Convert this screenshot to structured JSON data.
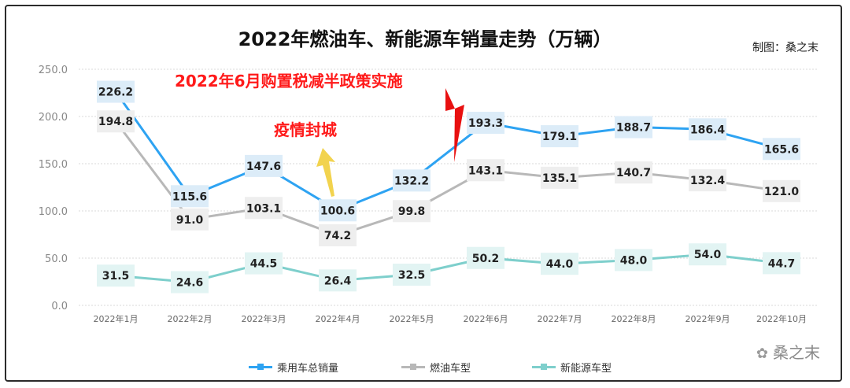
{
  "title": "2022年燃油车、新能源车销量走势（万辆）",
  "credit": "制图：桑之末",
  "watermark": "桑之末",
  "annotations": [
    {
      "text": "2022年6月购置税减半政策实施",
      "color": "#ff1a1a"
    },
    {
      "text": "疫情封城",
      "color": "#ff1a1a"
    }
  ],
  "colors": {
    "total": "#2ea3f2",
    "fuel": "#b8b8b8",
    "nev": "#7ecfcc",
    "arrow_red": "#e81010",
    "arrow_yellow": "#f2d34e"
  },
  "chart_data": {
    "type": "line",
    "title": "2022年燃油车、新能源车销量走势（万辆）",
    "categories": [
      "2022年1月",
      "2022年2月",
      "2022年3月",
      "2022年4月",
      "2022年5月",
      "2022年6月",
      "2022年7月",
      "2022年8月",
      "2022年9月",
      "2022年10月"
    ],
    "ylim": [
      0,
      250
    ],
    "yticks": [
      "0.0",
      "50.0",
      "100.0",
      "150.0",
      "200.0",
      "250.0"
    ],
    "grid": true,
    "legend_position": "bottom",
    "series": [
      {
        "name": "乘用车总销量",
        "values": [
          226.2,
          115.6,
          147.6,
          100.6,
          132.2,
          193.3,
          179.1,
          188.7,
          186.4,
          165.6
        ],
        "labels": [
          "226.2",
          "115.6",
          "147.6",
          "100.6",
          "132.2",
          "193.3",
          "179.1",
          "188.7",
          "186.4",
          "165.6"
        ]
      },
      {
        "name": "燃油车型",
        "values": [
          194.8,
          91.0,
          103.1,
          74.2,
          99.8,
          143.1,
          135.1,
          140.7,
          132.4,
          121.0
        ],
        "labels": [
          "194.8",
          "91.0",
          "103.1",
          "74.2",
          "99.8",
          "143.1",
          "135.1",
          "140.7",
          "132.4",
          "121.0"
        ]
      },
      {
        "name": "新能源车型",
        "values": [
          31.5,
          24.6,
          44.5,
          26.4,
          32.5,
          50.2,
          44.0,
          48.0,
          54.0,
          44.7
        ],
        "labels": [
          "31.5",
          "24.6",
          "44.5",
          "26.4",
          "32.5",
          "50.2",
          "44.0",
          "48.0",
          "54.0",
          "44.7"
        ]
      }
    ]
  }
}
